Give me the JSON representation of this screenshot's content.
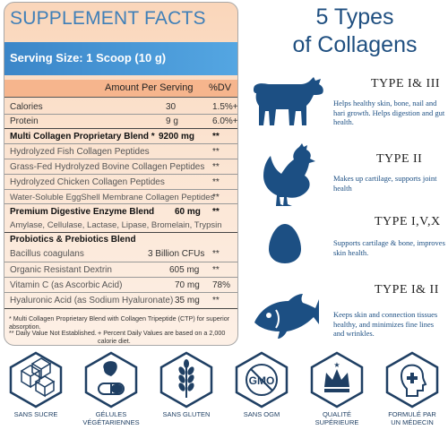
{
  "facts": {
    "title": "SUPPLEMENT FACTS",
    "serving": "Serving Size: 1 Scoop (10 g)",
    "amount_header": "Amount Per Serving",
    "dv_header": "%DV",
    "rows": [
      {
        "name": "Calories",
        "amount": "30",
        "dv": "1.5%+"
      },
      {
        "name": "Protein",
        "amount": "9 g",
        "dv": "6.0%+"
      },
      {
        "name": "Multi Collagen Proprietary Blend *",
        "amount": "9200 mg",
        "dv": "**"
      },
      {
        "name": "Hydrolyzed Fish Collagen Peptides",
        "amount": "",
        "dv": "**"
      },
      {
        "name": "Grass-Fed Hydrolyzed Bovine Collagen Peptides",
        "amount": "",
        "dv": "**"
      },
      {
        "name": "Hydrolyzed Chicken Collagen Peptides",
        "amount": "",
        "dv": "**"
      },
      {
        "name": "Water-Soluble EggShell Membrane Collagen Peptides",
        "amount": "",
        "dv": "**"
      },
      {
        "name": "Premium Digestive Enzyme Blend",
        "amount": "60 mg",
        "dv": "**"
      },
      {
        "name": "Amylase, Cellulase, Lactase, Lipase, Bromelain, Trypsin",
        "amount": "",
        "dv": ""
      },
      {
        "name": "Probiotics & Prebiotics Blend",
        "amount": "",
        "dv": ""
      },
      {
        "name": "Bacillus coagulans",
        "amount": "3 Billion CFUs",
        "dv": "**"
      },
      {
        "name": "Organic Resistant Dextrin",
        "amount": "605 mg",
        "dv": "**"
      },
      {
        "name": "Vitamin C (as Ascorbic Acid)",
        "amount": "70 mg",
        "dv": "78%"
      },
      {
        "name": "Hyaluronic Acid (as Sodium Hyaluronate)",
        "amount": "35 mg",
        "dv": "**"
      }
    ],
    "footnote1": "* Multi Collagen Proprietary Blend with Collagen Tripeptide (CTP) for superior absorption.",
    "footnote2a": "** Daily Value Not Established.",
    "footnote2b": "+ Percent Daily Values are based on a 2,000 calorie diet."
  },
  "types": {
    "title_line1": "5 Types",
    "title_line2": "of Collagens",
    "items": [
      {
        "icon": "cow-icon",
        "name": "TYPE I& III",
        "desc": "Helps healthy skin, bone, nail and hari growth. Helps digestion and gut health."
      },
      {
        "icon": "chicken-icon",
        "name": "TYPE II",
        "desc": "Makes up cartilage, supports joint health"
      },
      {
        "icon": "egg-icon",
        "name": "TYPE I,V,X",
        "desc": "Supports cartilage & bone, improves skin health."
      },
      {
        "icon": "fish-icon",
        "name": "TYPE I& II",
        "desc": "Keeps skin and connection tissues healthy, and minimizes fine lines and wrinkles."
      }
    ]
  },
  "badges": [
    {
      "icon": "sugar-cube-icon",
      "label": "SANS SUCRE"
    },
    {
      "icon": "capsule-icon",
      "label": "GÉLULES\nVÉGÉTARIENNES"
    },
    {
      "icon": "wheat-icon",
      "label": "SANS GLUTEN"
    },
    {
      "icon": "gmo-icon",
      "label": "SANS OGM",
      "gmo_text": "GMO"
    },
    {
      "icon": "crown-icon",
      "label": "QUALITÉ\nSUPÉRIEURE"
    },
    {
      "icon": "doctor-icon",
      "label": "FORMULÉ PAR\nUN MÉDECIN"
    }
  ],
  "colors": {
    "accent_blue": "#3f7fb8",
    "icon_navy": "#1c4f83",
    "panel_peach": "#fad6ba"
  }
}
